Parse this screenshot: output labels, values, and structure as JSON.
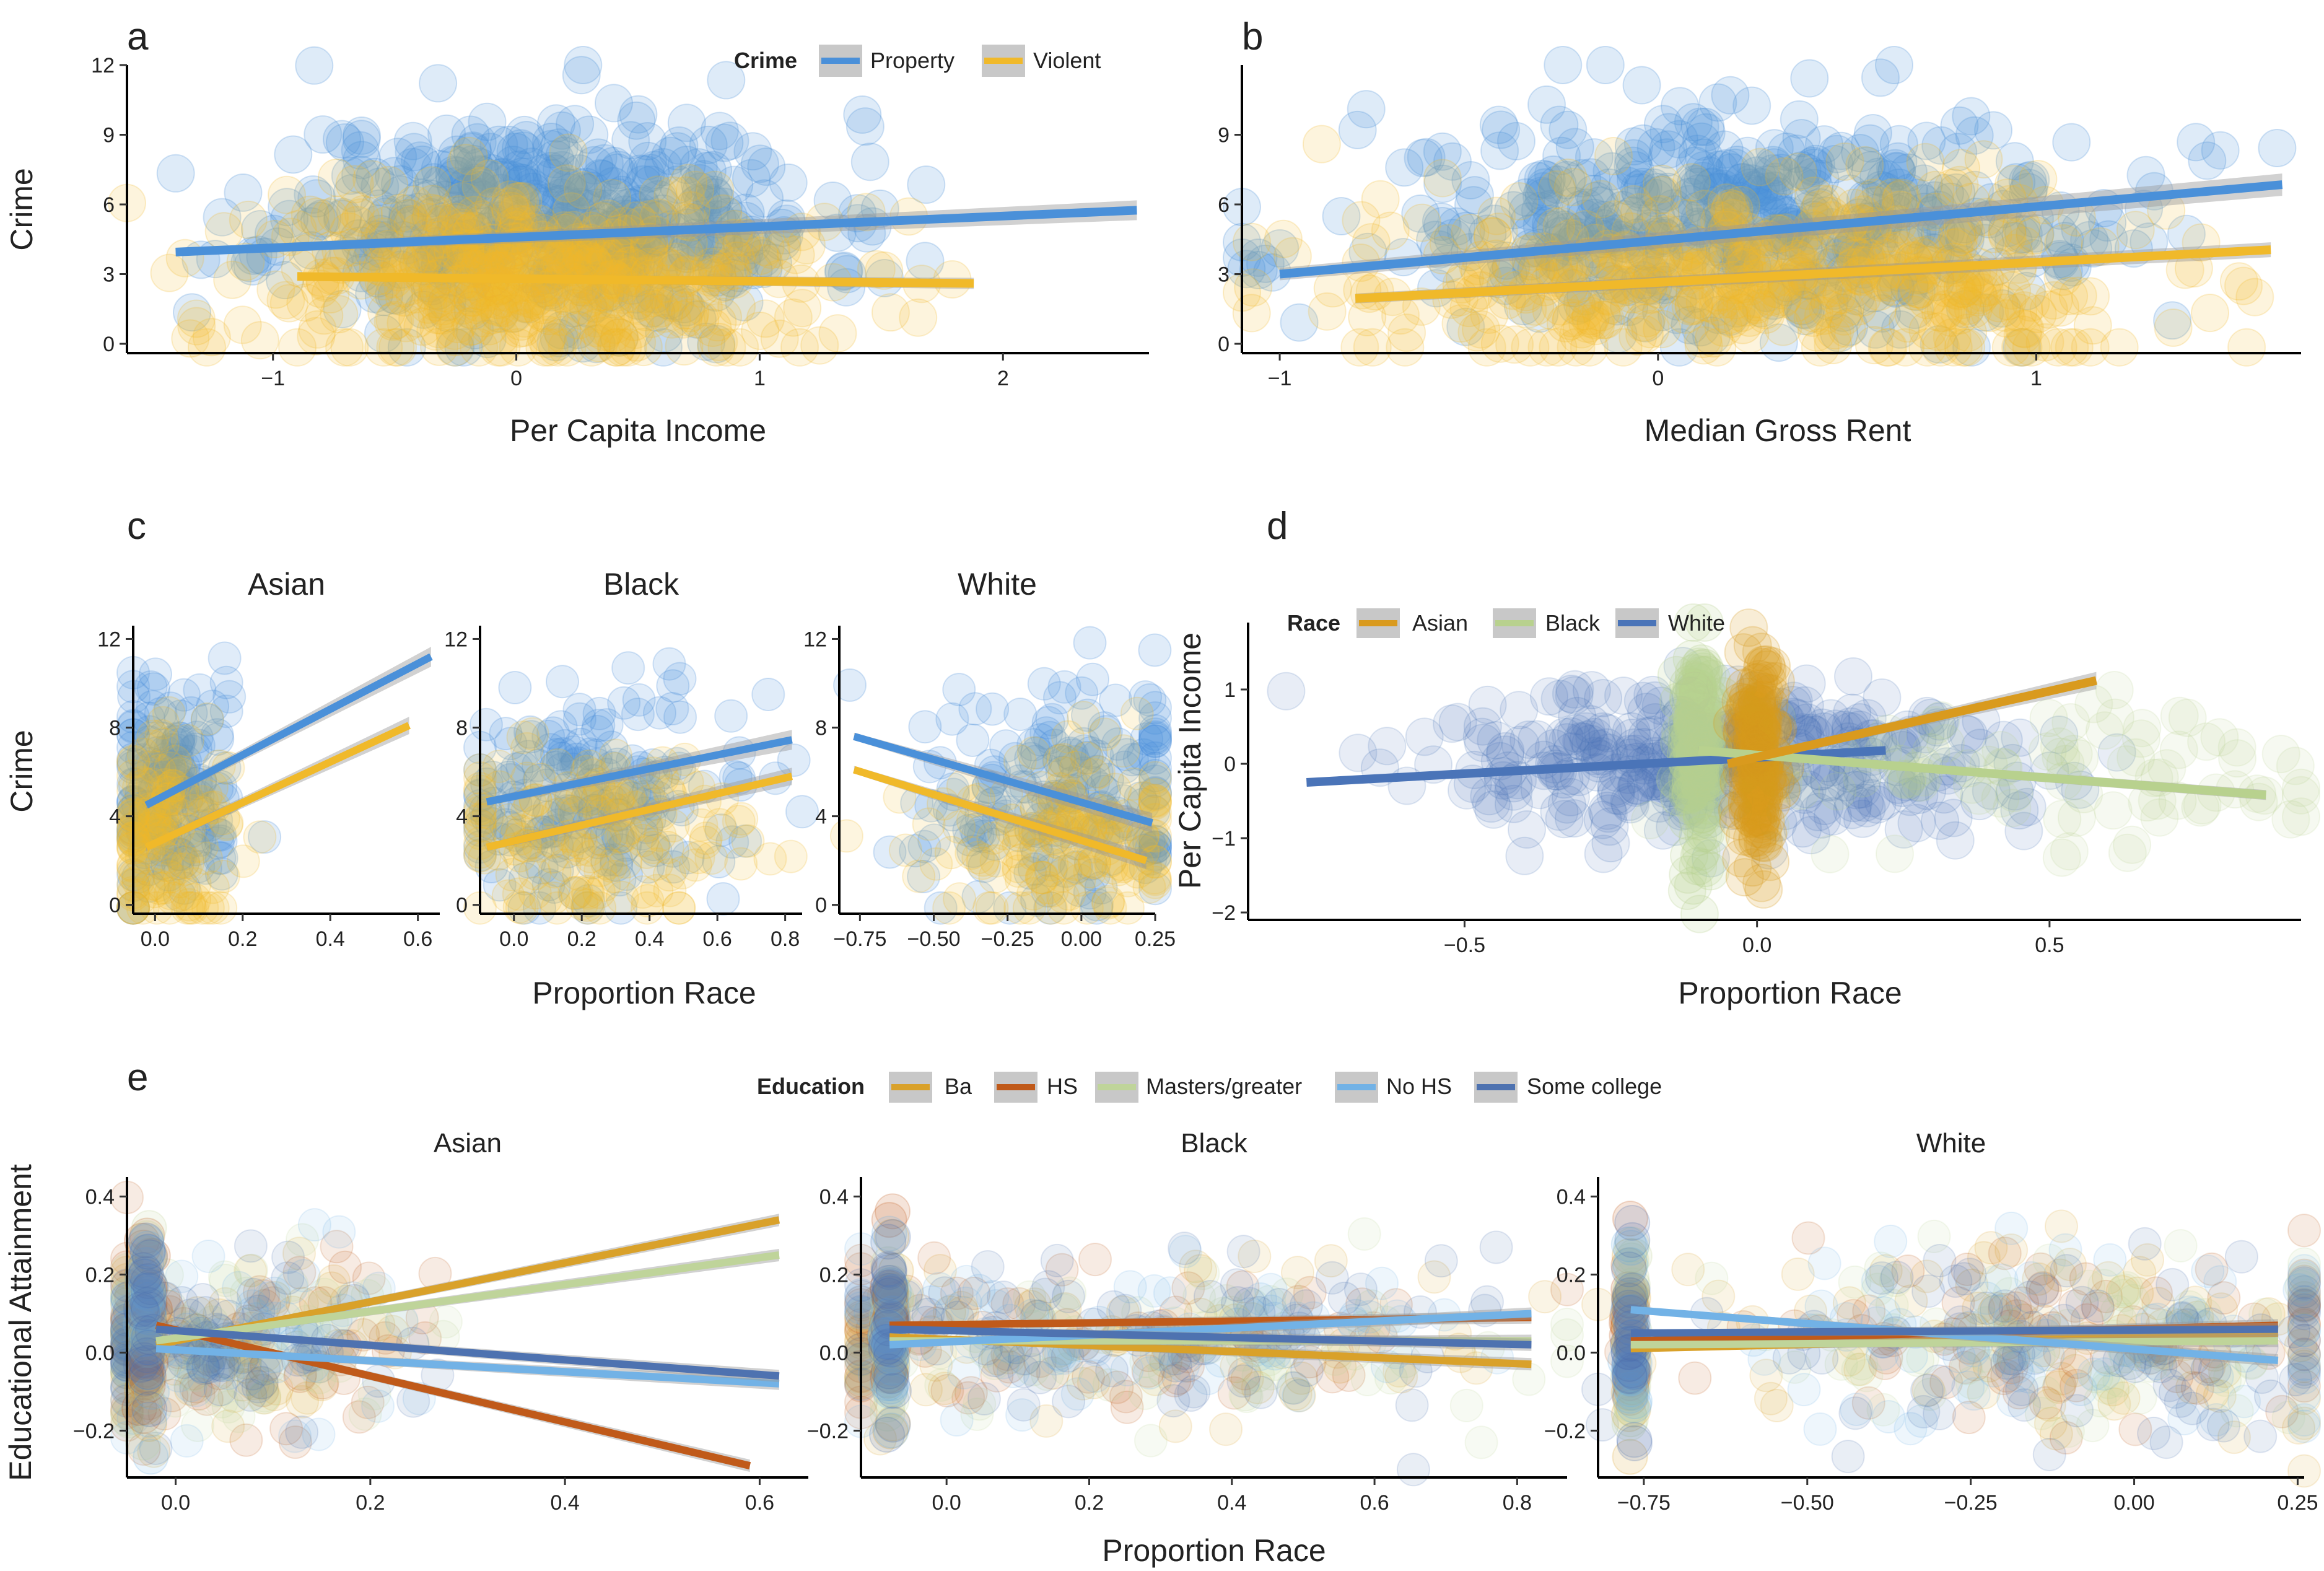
{
  "colors": {
    "property": "#4a90d9",
    "violent": "#f0b92a",
    "asian": "#d99a1e",
    "black": "#b8d18e",
    "white": "#4a74b8",
    "ba": "#d9a12a",
    "hs": "#c05a1a",
    "masters": "#bfd49a",
    "nohs": "#72b2e6",
    "somecollege": "#4e72b0",
    "band": "#9a9a9a"
  },
  "chart_data": [
    {
      "panel": "a",
      "type": "scatter",
      "xlabel": "Per Capita Income",
      "ylabel": "Crime",
      "xlim": [
        -1.6,
        2.6
      ],
      "ylim": [
        -0.4,
        12
      ],
      "xticks": [
        -1,
        0,
        1,
        2
      ],
      "yticks": [
        0,
        3,
        6,
        9,
        12
      ],
      "legend": {
        "title": "Crime",
        "position": "top-right",
        "entries": [
          "Property",
          "Violent"
        ]
      },
      "series": [
        {
          "name": "Property",
          "color_key": "property",
          "x": [
            -1.4,
            2.55
          ],
          "y": [
            3.95,
            5.75
          ],
          "cloud": {
            "cx": 0.15,
            "cy": 5.3,
            "sx": 0.55,
            "sy": 2.3,
            "n": 520
          }
        },
        {
          "name": "Violent",
          "color_key": "violent",
          "x": [
            -0.9,
            1.88
          ],
          "y": [
            2.9,
            2.6
          ],
          "cloud": {
            "cx": 0.1,
            "cy": 2.9,
            "sx": 0.55,
            "sy": 2.0,
            "n": 480
          }
        }
      ]
    },
    {
      "panel": "b",
      "type": "scatter",
      "xlabel": "Median Gross Rent",
      "ylabel": "",
      "xlim": [
        -1.1,
        1.7
      ],
      "ylim": [
        -0.4,
        12
      ],
      "xticks": [
        -1,
        0,
        1
      ],
      "yticks": [
        0,
        3,
        6,
        9
      ],
      "series": [
        {
          "name": "Property",
          "color_key": "property",
          "x": [
            -1.0,
            1.65
          ],
          "y": [
            3.0,
            6.85
          ],
          "cloud": {
            "cx": 0.25,
            "cy": 5.2,
            "sx": 0.5,
            "sy": 2.3,
            "n": 520
          }
        },
        {
          "name": "Violent",
          "color_key": "violent",
          "x": [
            -0.8,
            1.62
          ],
          "y": [
            1.95,
            4.05
          ],
          "cloud": {
            "cx": 0.3,
            "cy": 2.9,
            "sx": 0.5,
            "sy": 2.0,
            "n": 480
          }
        }
      ]
    },
    {
      "panel": "c",
      "type": "scatter",
      "xlabel": "Proportion Race",
      "ylabel": "Crime",
      "ylim": [
        -0.4,
        12.6
      ],
      "yticks": [
        0,
        4,
        8,
        12
      ],
      "facets": [
        {
          "title": "Asian",
          "xlim": [
            -0.05,
            0.65
          ],
          "xticks": [
            0.0,
            0.2,
            0.4,
            0.6
          ],
          "tick_labels": [
            "0.0",
            "0.2",
            "0.4",
            "0.6"
          ],
          "lines": [
            {
              "name": "Property",
              "color_key": "property",
              "x": [
                -0.02,
                0.63
              ],
              "y": [
                4.5,
                11.2
              ]
            },
            {
              "name": "Violent",
              "color_key": "violent",
              "x": [
                -0.02,
                0.58
              ],
              "y": [
                2.6,
                8.1
              ]
            }
          ],
          "cloud": {
            "cx": 0.03,
            "cy": 5.0,
            "sx": 0.08,
            "sy": 2.5,
            "n": 300
          }
        },
        {
          "title": "Black",
          "xlim": [
            -0.1,
            0.85
          ],
          "xticks": [
            0.0,
            0.2,
            0.4,
            0.6,
            0.8
          ],
          "tick_labels": [
            "0.0",
            "0.2",
            "0.4",
            "0.6",
            "0.8"
          ],
          "lines": [
            {
              "name": "Property",
              "color_key": "property",
              "x": [
                -0.08,
                0.82
              ],
              "y": [
                4.65,
                7.45
              ]
            },
            {
              "name": "Violent",
              "color_key": "violent",
              "x": [
                -0.08,
                0.82
              ],
              "y": [
                2.6,
                5.8
              ]
            }
          ],
          "cloud": {
            "cx": 0.2,
            "cy": 5.0,
            "sx": 0.25,
            "sy": 2.5,
            "n": 340
          }
        },
        {
          "title": "White",
          "xlim": [
            -0.82,
            0.25
          ],
          "xticks": [
            -0.75,
            -0.5,
            -0.25,
            0.0,
            0.25
          ],
          "tick_labels": [
            "-0.75",
            "-0.50",
            "-0.25",
            "0.00",
            "0.25"
          ],
          "lines": [
            {
              "name": "Property",
              "color_key": "property",
              "x": [
                -0.77,
                0.24
              ],
              "y": [
                7.6,
                3.7
              ]
            },
            {
              "name": "Violent",
              "color_key": "violent",
              "x": [
                -0.77,
                0.22
              ],
              "y": [
                6.1,
                2.0
              ]
            }
          ],
          "cloud": {
            "cx": -0.05,
            "cy": 5.0,
            "sx": 0.25,
            "sy": 2.5,
            "n": 340
          }
        }
      ]
    },
    {
      "panel": "d",
      "type": "scatter",
      "xlabel": "Proportion Race",
      "ylabel": "Per Capita Income",
      "xlim": [
        -0.87,
        0.93
      ],
      "ylim": [
        -2.1,
        1.9
      ],
      "xticks": [
        -0.5,
        0.0,
        0.5
      ],
      "tick_labels": [
        "-0.5",
        "0.0",
        "0.5"
      ],
      "yticks": [
        -2,
        -1,
        0,
        1
      ],
      "legend": {
        "title": "Race",
        "position": "top-left",
        "entries": [
          "Asian",
          "Black",
          "White"
        ]
      },
      "series": [
        {
          "name": "Asian",
          "color_key": "asian",
          "x": [
            -0.05,
            0.58
          ],
          "y": [
            0.0,
            1.12
          ],
          "cloud": {
            "cx": 0.0,
            "cy": 0.2,
            "sx": 0.015,
            "sy": 0.8,
            "n": 160
          }
        },
        {
          "name": "Black",
          "color_key": "black",
          "x": [
            -0.1,
            0.87
          ],
          "y": [
            0.18,
            -0.42
          ],
          "cloud": {
            "cx": -0.1,
            "cy": 0.2,
            "sx": 0.015,
            "sy": 0.8,
            "n": 160
          }
        },
        {
          "name": "White",
          "color_key": "white",
          "x": [
            -0.77,
            0.22
          ],
          "y": [
            -0.25,
            0.18
          ],
          "cloud": {
            "cx": -0.05,
            "cy": 0.0,
            "sx": 0.25,
            "sy": 0.5,
            "n": 360
          }
        }
      ]
    },
    {
      "panel": "e",
      "type": "scatter",
      "xlabel": "Proportion Race",
      "ylabel": "Educational Attainment",
      "ylim": [
        -0.32,
        0.45
      ],
      "yticks": [
        -0.2,
        0.0,
        0.2,
        0.4
      ],
      "ytick_labels": [
        "-0.2",
        "0.0",
        "0.2",
        "0.4"
      ],
      "legend": {
        "title": "Education",
        "position": "top",
        "entries": [
          "Ba",
          "HS",
          "Masters/greater",
          "No HS",
          "Some college"
        ]
      },
      "facets": [
        {
          "title": "Asian",
          "xlim": [
            -0.05,
            0.65
          ],
          "xticks": [
            0.0,
            0.2,
            0.4,
            0.6
          ],
          "tick_labels": [
            "0.0",
            "0.2",
            "0.4",
            "0.6"
          ],
          "lines": [
            {
              "name": "Ba",
              "color_key": "ba",
              "x": [
                -0.02,
                0.62
              ],
              "y": [
                0.02,
                0.34
              ]
            },
            {
              "name": "HS",
              "color_key": "hs",
              "x": [
                -0.02,
                0.59
              ],
              "y": [
                0.07,
                -0.29
              ]
            },
            {
              "name": "Masters/greater",
              "color_key": "masters",
              "x": [
                -0.02,
                0.62
              ],
              "y": [
                0.03,
                0.25
              ]
            },
            {
              "name": "No HS",
              "color_key": "nohs",
              "x": [
                -0.02,
                0.62
              ],
              "y": [
                0.01,
                -0.08
              ]
            },
            {
              "name": "Some college",
              "color_key": "somecollege",
              "x": [
                -0.02,
                0.62
              ],
              "y": [
                0.06,
                -0.06
              ]
            }
          ],
          "cloud": {
            "cx": 0.04,
            "cy": 0.03,
            "sx": 0.1,
            "sy": 0.12,
            "n": 360
          }
        },
        {
          "title": "Black",
          "xlim": [
            -0.12,
            0.87
          ],
          "xticks": [
            0.0,
            0.2,
            0.4,
            0.6,
            0.8
          ],
          "tick_labels": [
            "0.0",
            "0.2",
            "0.4",
            "0.6",
            "0.8"
          ],
          "lines": [
            {
              "name": "Ba",
              "color_key": "ba",
              "x": [
                -0.08,
                0.82
              ],
              "y": [
                0.04,
                -0.03
              ]
            },
            {
              "name": "HS",
              "color_key": "hs",
              "x": [
                -0.08,
                0.82
              ],
              "y": [
                0.07,
                0.09
              ]
            },
            {
              "name": "Masters/greater",
              "color_key": "masters",
              "x": [
                -0.08,
                0.82
              ],
              "y": [
                0.03,
                0.03
              ]
            },
            {
              "name": "No HS",
              "color_key": "nohs",
              "x": [
                -0.08,
                0.82
              ],
              "y": [
                0.02,
                0.1
              ]
            },
            {
              "name": "Some college",
              "color_key": "somecollege",
              "x": [
                -0.08,
                0.82
              ],
              "y": [
                0.06,
                0.02
              ]
            }
          ],
          "cloud": {
            "cx": 0.25,
            "cy": 0.03,
            "sx": 0.28,
            "sy": 0.1,
            "n": 400
          }
        },
        {
          "title": "White",
          "xlim": [
            -0.82,
            0.26
          ],
          "xticks": [
            -0.75,
            -0.5,
            -0.25,
            0.0,
            0.25
          ],
          "tick_labels": [
            "-0.75",
            "-0.50",
            "-0.25",
            "0.00",
            "0.25"
          ],
          "lines": [
            {
              "name": "Ba",
              "color_key": "ba",
              "x": [
                -0.77,
                0.22
              ],
              "y": [
                0.01,
                0.05
              ]
            },
            {
              "name": "HS",
              "color_key": "hs",
              "x": [
                -0.77,
                0.22
              ],
              "y": [
                0.03,
                0.07
              ]
            },
            {
              "name": "Masters/greater",
              "color_key": "masters",
              "x": [
                -0.77,
                0.22
              ],
              "y": [
                0.02,
                0.03
              ]
            },
            {
              "name": "No HS",
              "color_key": "nohs",
              "x": [
                -0.77,
                0.22
              ],
              "y": [
                0.11,
                -0.02
              ]
            },
            {
              "name": "Some college",
              "color_key": "somecollege",
              "x": [
                -0.77,
                0.22
              ],
              "y": [
                0.05,
                0.06
              ]
            }
          ],
          "cloud": {
            "cx": -0.1,
            "cy": 0.03,
            "sx": 0.28,
            "sy": 0.12,
            "n": 420
          }
        }
      ]
    }
  ]
}
